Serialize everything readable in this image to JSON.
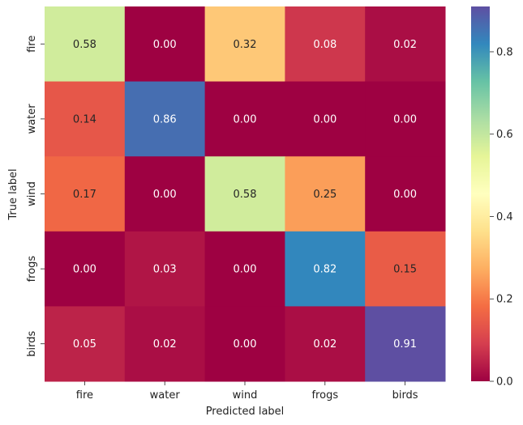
{
  "chart_data": {
    "type": "heatmap",
    "title": "",
    "xlabel": "Predicted label",
    "ylabel": "True label",
    "x_categories": [
      "fire",
      "water",
      "wind",
      "frogs",
      "birds"
    ],
    "y_categories": [
      "fire",
      "water",
      "wind",
      "frogs",
      "birds"
    ],
    "values": [
      [
        0.58,
        0.0,
        0.32,
        0.08,
        0.02
      ],
      [
        0.14,
        0.86,
        0.0,
        0.0,
        0.0
      ],
      [
        0.17,
        0.0,
        0.58,
        0.25,
        0.0
      ],
      [
        0.0,
        0.03,
        0.0,
        0.82,
        0.15
      ],
      [
        0.05,
        0.02,
        0.0,
        0.02,
        0.91
      ]
    ],
    "value_format": "0.00",
    "colormap": "Spectral",
    "vmin": 0.0,
    "vmax": 0.91,
    "colorbar_ticks": [
      0.0,
      0.2,
      0.4,
      0.6,
      0.8
    ],
    "colorbar_tick_labels": [
      "0.0",
      "0.2",
      "0.4",
      "0.6",
      "0.8"
    ],
    "grid": false,
    "colorbar_placement": "right"
  }
}
